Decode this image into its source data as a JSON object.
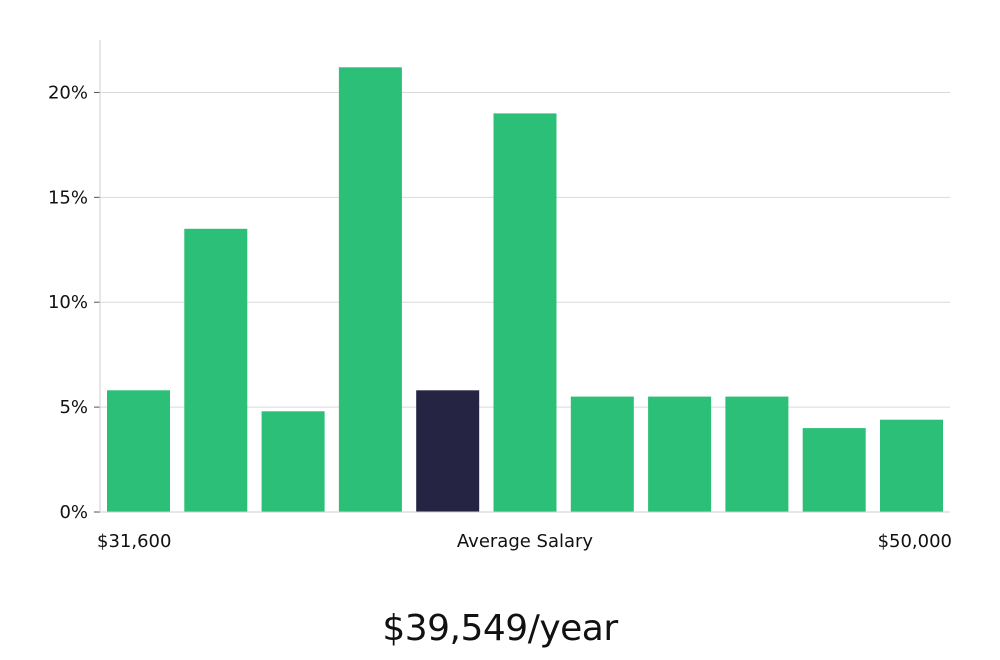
{
  "chart_data": {
    "type": "bar",
    "values": [
      5.8,
      13.5,
      4.8,
      21.2,
      5.8,
      19.0,
      5.5,
      5.5,
      5.5,
      4.0,
      4.4
    ],
    "highlight_index": 4,
    "ylim": [
      0,
      22.5
    ],
    "yticks": [
      0,
      5,
      10,
      15,
      20
    ],
    "ytick_suffix": "%",
    "grid": true,
    "x_left_label": "$31,600",
    "x_center_label": "Average Salary",
    "x_right_label": "$50,000"
  },
  "colors": {
    "bar": "#2bbf77",
    "highlight_bar": "#262443",
    "grid": "#d9d9d9",
    "axis": "#cfcfcf"
  },
  "summary": {
    "salary_text": "$39,549/year"
  }
}
